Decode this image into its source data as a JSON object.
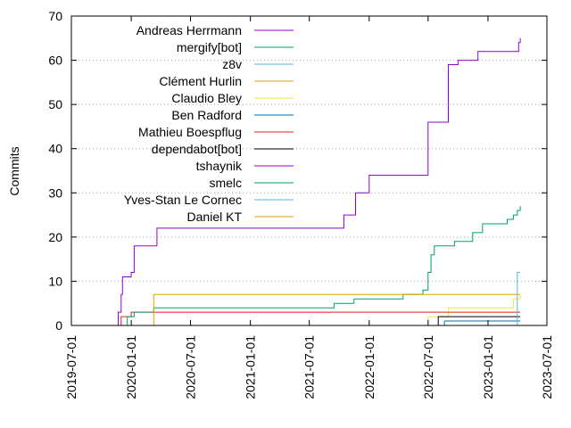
{
  "chart_data": {
    "type": "line",
    "title": "",
    "xlabel": "",
    "ylabel": "Commits",
    "x_is_date": true,
    "xlim": [
      "2019-07-01",
      "2023-07-01"
    ],
    "ylim": [
      0,
      70
    ],
    "x_ticks": [
      "2019-07-01",
      "2020-01-01",
      "2020-07-01",
      "2021-01-01",
      "2021-07-01",
      "2022-01-01",
      "2022-07-01",
      "2023-01-01",
      "2023-07-01"
    ],
    "y_ticks": [
      0,
      10,
      20,
      30,
      40,
      50,
      60,
      70
    ],
    "grid": "dotted horizontal at y ticks",
    "legend_position": "top-left",
    "series": [
      {
        "name": "Andreas Herrmann",
        "color": "#9400d3",
        "points": []
      },
      {
        "name": "mergify[bot]",
        "color": "#009e73",
        "points": []
      },
      {
        "name": "z8v",
        "color": "#56b4e9",
        "points": [
          [
            "2020-02-01",
            0
          ],
          [
            "2021-07-01",
            0
          ]
        ]
      },
      {
        "name": "Clément Hurlin",
        "color": "#e69f00",
        "points": []
      },
      {
        "name": "Claudio Bley",
        "color": "#f0e442",
        "points": [
          [
            "2022-07-01",
            0
          ],
          [
            "2022-07-01",
            2
          ],
          [
            "2022-09-01",
            2
          ],
          [
            "2022-09-01",
            4
          ],
          [
            "2023-01-15",
            4
          ],
          [
            "2023-03-20",
            6
          ],
          [
            "2023-04-10",
            7
          ]
        ]
      },
      {
        "name": "Ben Radford",
        "color": "#0072b2",
        "points": [
          [
            "2022-08-01",
            0
          ],
          [
            "2022-08-20",
            1
          ],
          [
            "2023-04-10",
            1
          ]
        ]
      },
      {
        "name": "Mathieu Boespflug",
        "color": "#e51e10",
        "points": [
          [
            "2019-11-20",
            0
          ],
          [
            "2019-12-01",
            2
          ],
          [
            "2020-01-01",
            3
          ],
          [
            "2023-04-10",
            3
          ]
        ]
      },
      {
        "name": "dependabot[bot]",
        "color": "#000000",
        "points": [
          [
            "2022-07-01",
            0
          ],
          [
            "2022-08-01",
            2
          ],
          [
            "2023-04-10",
            2
          ]
        ]
      },
      {
        "name": "tshaynik",
        "color": "#9400d3",
        "points": [
          [
            "2019-11-20",
            0
          ],
          [
            "2019-11-22",
            3
          ],
          [
            "2019-12-01",
            7
          ],
          [
            "2019-12-05",
            11
          ],
          [
            "2020-01-01",
            12
          ],
          [
            "2020-01-10",
            18
          ],
          [
            "2020-03-20",
            22
          ],
          [
            "2021-10-01",
            22
          ],
          [
            "2021-10-15",
            25
          ],
          [
            "2021-11-20",
            30
          ],
          [
            "2022-01-01",
            34
          ],
          [
            "2022-06-20",
            34
          ],
          [
            "2022-07-01",
            46
          ],
          [
            "2022-08-15",
            46
          ],
          [
            "2022-09-01",
            59
          ],
          [
            "2022-10-01",
            60
          ],
          [
            "2022-12-01",
            62
          ],
          [
            "2023-03-15",
            62
          ],
          [
            "2023-04-05",
            64
          ],
          [
            "2023-04-10",
            65
          ]
        ]
      },
      {
        "name": "smelc",
        "color": "#009e73",
        "points": [
          [
            "2019-12-01",
            0
          ],
          [
            "2019-12-20",
            2
          ],
          [
            "2020-01-10",
            3
          ],
          [
            "2020-03-01",
            3
          ],
          [
            "2020-03-10",
            4
          ],
          [
            "2021-09-01",
            4
          ],
          [
            "2021-09-15",
            5
          ],
          [
            "2021-11-01",
            5
          ],
          [
            "2021-11-15",
            6
          ],
          [
            "2022-04-01",
            6
          ],
          [
            "2022-04-15",
            7
          ],
          [
            "2022-06-01",
            7
          ],
          [
            "2022-06-15",
            8
          ],
          [
            "2022-07-01",
            12
          ],
          [
            "2022-07-10",
            16
          ],
          [
            "2022-07-20",
            18
          ],
          [
            "2022-09-10",
            18
          ],
          [
            "2022-09-20",
            19
          ],
          [
            "2022-11-01",
            19
          ],
          [
            "2022-11-15",
            21
          ],
          [
            "2022-12-15",
            23
          ],
          [
            "2023-02-15",
            23
          ],
          [
            "2023-03-01",
            24
          ],
          [
            "2023-03-20",
            25
          ],
          [
            "2023-04-01",
            26
          ],
          [
            "2023-04-10",
            27
          ]
        ]
      },
      {
        "name": "Yves-Stan Le Cornec",
        "color": "#56b4e9",
        "points": [
          [
            "2023-03-20",
            0
          ],
          [
            "2023-04-01",
            12
          ],
          [
            "2023-04-10",
            12
          ]
        ]
      },
      {
        "name": "Daniel KT",
        "color": "#e69f00",
        "points": [
          [
            "2020-03-01",
            0
          ],
          [
            "2020-03-10",
            7
          ],
          [
            "2023-04-10",
            7
          ]
        ]
      }
    ]
  }
}
